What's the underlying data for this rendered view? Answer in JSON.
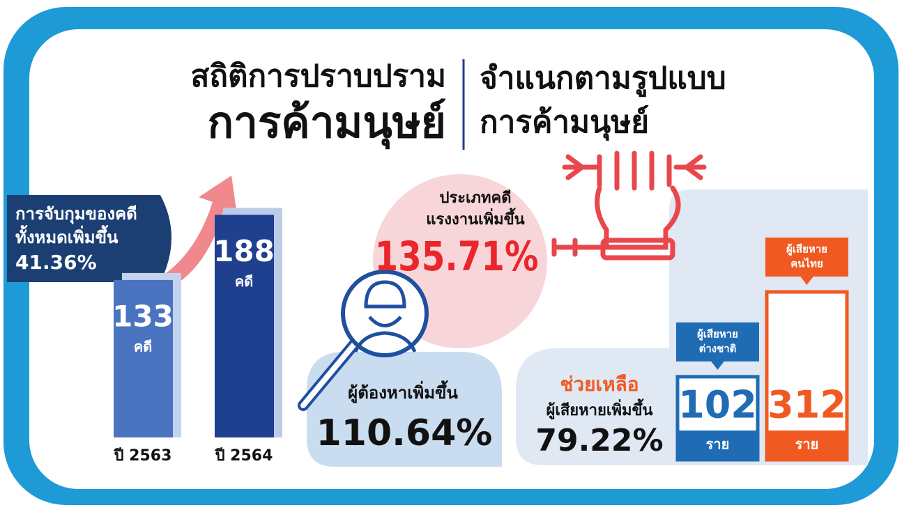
{
  "header": {
    "left": [
      "สถิติการปราบปราม",
      "การค้ามนุษย์"
    ],
    "right": [
      "จำแนกตามรูปแบบ",
      "การค้ามนุษย์"
    ]
  },
  "arrests": {
    "label": [
      "การจับกุมของคดี",
      "ทั้งหมดเพิ่มขึ้น"
    ],
    "value": "41.36%"
  },
  "cases": [
    {
      "value": 133,
      "unit": "คดี",
      "year": "ปี 2563"
    },
    {
      "value": 188,
      "unit": "คดี",
      "year": "ปี 2564"
    }
  ],
  "labour": {
    "label": [
      "ประเภทคดี",
      "แรงงานเพิ่มขึ้น"
    ],
    "value": "135.71%"
  },
  "suspects": {
    "label": "ผู้ต้องหาเพิ่มขึ้น",
    "value": "110.64%"
  },
  "assistance": {
    "title": "ช่วยเหลือ",
    "label": "ผู้เสียหายเพิ่มขึ้น",
    "value": "79.22%"
  },
  "victims": [
    {
      "label": [
        "ผู้เสียหาย",
        "ต่างชาติ"
      ],
      "value": 102,
      "unit": "ราย",
      "color": "#1f6cb5"
    },
    {
      "label": [
        "ผู้เสียหาย",
        "คนไทย"
      ],
      "value": 312,
      "unit": "ราย",
      "color": "#f05a22"
    }
  ]
}
